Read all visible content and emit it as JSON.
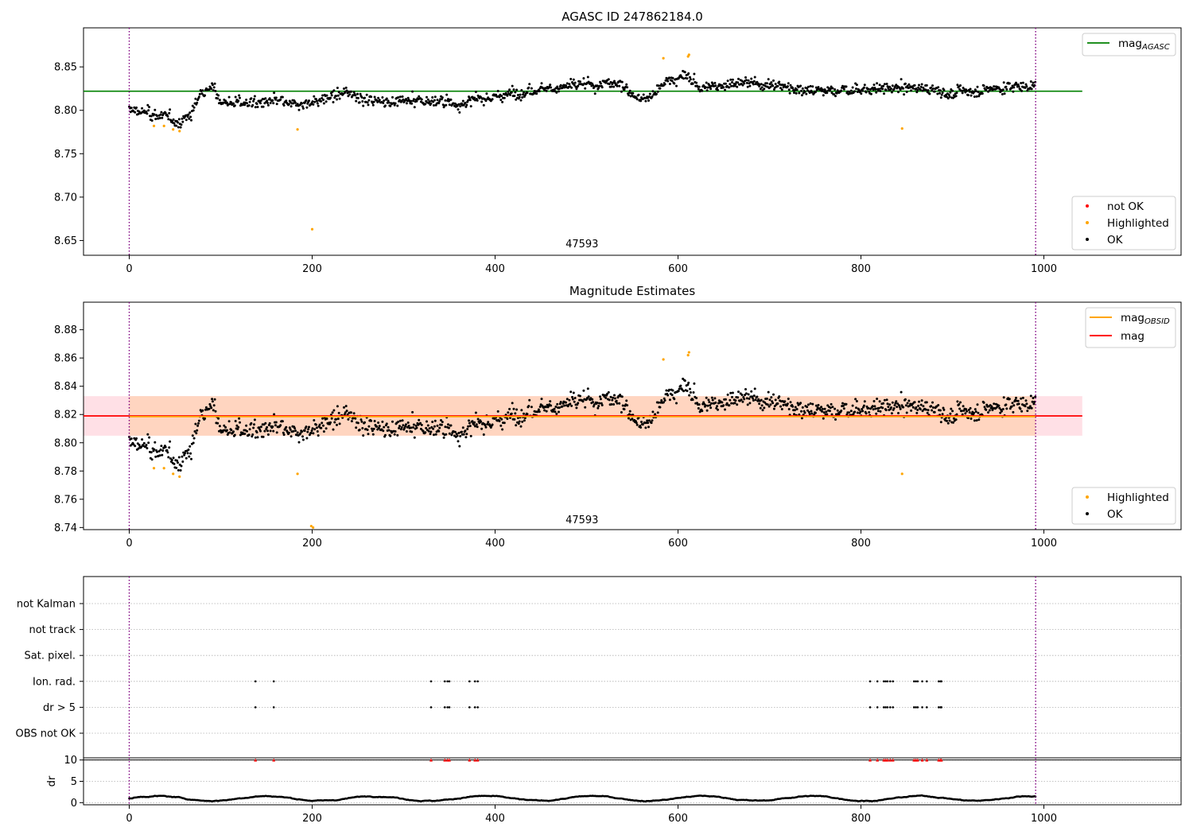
{
  "chart_data": [
    {
      "type": "scatter",
      "title": "AGASC ID 247862184.0",
      "xlim": [
        -50,
        1150
      ],
      "ylim": [
        8.633,
        8.895
      ],
      "xticks": [
        0,
        200,
        400,
        600,
        800,
        1000
      ],
      "yticks": [
        8.65,
        8.7,
        8.75,
        8.8,
        8.85
      ],
      "ytick_labels": [
        "8.65",
        "8.70",
        "8.75",
        "8.80",
        "8.85"
      ],
      "vlines": [
        0,
        991
      ],
      "annotation": {
        "text": "47593",
        "x": 495,
        "y": 8.642
      },
      "reference_lines": [
        {
          "name": "mag",
          "subscript": "AGASC",
          "y": 8.822,
          "x_range": [
            -50,
            1042
          ],
          "color": "#008000"
        }
      ],
      "legend_lines_placement": "top-right",
      "legend_points_placement": "lower-right",
      "series": [
        {
          "name": "not OK",
          "color": "#ff0000",
          "points": []
        },
        {
          "name": "Highlighted",
          "color": "#ffa500",
          "points": [
            [
              27,
              8.782
            ],
            [
              38,
              8.782
            ],
            [
              48,
              8.778
            ],
            [
              55,
              8.776
            ],
            [
              184,
              8.778
            ],
            [
              200,
              8.663
            ],
            [
              584,
              8.86
            ],
            [
              611,
              8.862
            ],
            [
              612,
              8.864
            ],
            [
              845,
              8.779
            ]
          ]
        },
        {
          "name": "OK",
          "color": "#000000",
          "generated": true
        }
      ],
      "ok_trend": [
        [
          0,
          8.8
        ],
        [
          20,
          8.797
        ],
        [
          40,
          8.792
        ],
        [
          55,
          8.786
        ],
        [
          68,
          8.795
        ],
        [
          78,
          8.822
        ],
        [
          92,
          8.826
        ],
        [
          100,
          8.81
        ],
        [
          140,
          8.808
        ],
        [
          160,
          8.81
        ],
        [
          180,
          8.805
        ],
        [
          195,
          8.808
        ],
        [
          220,
          8.815
        ],
        [
          245,
          8.82
        ],
        [
          260,
          8.812
        ],
        [
          300,
          8.81
        ],
        [
          340,
          8.811
        ],
        [
          360,
          8.807
        ],
        [
          380,
          8.812
        ],
        [
          410,
          8.817
        ],
        [
          440,
          8.825
        ],
        [
          480,
          8.827
        ],
        [
          520,
          8.831
        ],
        [
          540,
          8.828
        ],
        [
          560,
          8.813
        ],
        [
          570,
          8.815
        ],
        [
          590,
          8.835
        ],
        [
          610,
          8.84
        ],
        [
          625,
          8.825
        ],
        [
          660,
          8.832
        ],
        [
          700,
          8.83
        ],
        [
          760,
          8.822
        ],
        [
          800,
          8.824
        ],
        [
          860,
          8.826
        ],
        [
          900,
          8.82
        ],
        [
          960,
          8.827
        ],
        [
          991,
          8.828
        ]
      ],
      "ok_scatter": 0.0085
    },
    {
      "type": "scatter",
      "title": "Magnitude Estimates",
      "xlim": [
        -50,
        1150
      ],
      "ylim": [
        8.7385,
        8.8995
      ],
      "xticks": [
        0,
        200,
        400,
        600,
        800,
        1000
      ],
      "yticks": [
        8.74,
        8.76,
        8.78,
        8.8,
        8.82,
        8.84,
        8.86,
        8.88
      ],
      "ytick_labels": [
        "8.74",
        "8.76",
        "8.78",
        "8.80",
        "8.82",
        "8.84",
        "8.86",
        "8.88"
      ],
      "vlines": [
        0,
        991
      ],
      "annotation": {
        "text": "47593",
        "x": 495,
        "y": 8.743
      },
      "reference_lines": [
        {
          "name": "mag",
          "subscript": "OBSID",
          "y": 8.8185,
          "x_range": [
            0,
            991
          ],
          "color": "#ffa500"
        },
        {
          "name": "mag",
          "subscript": "",
          "y": 8.819,
          "x_range": [
            -50,
            1042
          ],
          "color": "#ff0000"
        }
      ],
      "bands": [
        {
          "y_range": [
            8.805,
            8.833
          ],
          "x_range": [
            -50,
            1042
          ],
          "color": "#ffe0e6"
        },
        {
          "y_range": [
            8.805,
            8.833
          ],
          "x_range": [
            0,
            991
          ],
          "color": "#ffd5c0"
        }
      ],
      "legend_lines_placement": "top-right",
      "legend_points_placement": "lower-right",
      "series": [
        {
          "name": "Highlighted",
          "color": "#ffa500",
          "points": [
            [
              27,
              8.782
            ],
            [
              38,
              8.782
            ],
            [
              48,
              8.778
            ],
            [
              55,
              8.776
            ],
            [
              184,
              8.778
            ],
            [
              199,
              8.741
            ],
            [
              201,
              8.74
            ],
            [
              584,
              8.859
            ],
            [
              611,
              8.862
            ],
            [
              612,
              8.864
            ],
            [
              845,
              8.778
            ]
          ]
        },
        {
          "name": "OK",
          "color": "#000000",
          "generated": true
        }
      ],
      "ok_trend_ref": 0
    },
    {
      "type": "scatter",
      "title": "",
      "xlim": [
        -50,
        1150
      ],
      "ylim": [
        -0.5,
        8
      ],
      "xticks": [
        0,
        200,
        400,
        600,
        800,
        1000
      ],
      "vlines": [
        0,
        991
      ],
      "categories": [
        "not Kalman",
        "not track",
        "Sat. pixel.",
        "Ion. rad.",
        "dr > 5",
        "OBS not OK"
      ],
      "flag_points": {
        "Ion. rad.": [
          138,
          158,
          330,
          345,
          348,
          350,
          372,
          378,
          381,
          810,
          818,
          825,
          827,
          829,
          832,
          835,
          858,
          860,
          862,
          867,
          872,
          885,
          887,
          888
        ],
        "dr > 5": [
          138,
          158,
          330,
          345,
          348,
          350,
          372,
          378,
          381,
          810,
          818,
          825,
          827,
          829,
          832,
          835,
          858,
          860,
          862,
          867,
          872,
          885,
          887,
          888
        ]
      }
    },
    {
      "type": "scatter",
      "title": "",
      "ylabel": "dr",
      "xlim": [
        -50,
        1150
      ],
      "ylim": [
        -0.5,
        10.5
      ],
      "xticks": [
        0,
        200,
        400,
        600,
        800,
        1000
      ],
      "yticks": [
        0,
        5,
        10
      ],
      "ytick_labels": [
        "0",
        "5",
        "10"
      ],
      "vlines": [
        0,
        991
      ],
      "hlines": [
        10
      ],
      "capped_points": [
        138,
        158,
        330,
        345,
        348,
        350,
        372,
        378,
        381,
        810,
        818,
        825,
        827,
        829,
        832,
        835,
        858,
        860,
        862,
        867,
        872,
        885,
        887,
        888
      ],
      "capped_color": "#ff0000",
      "dr_baseline": 1.0
    }
  ]
}
